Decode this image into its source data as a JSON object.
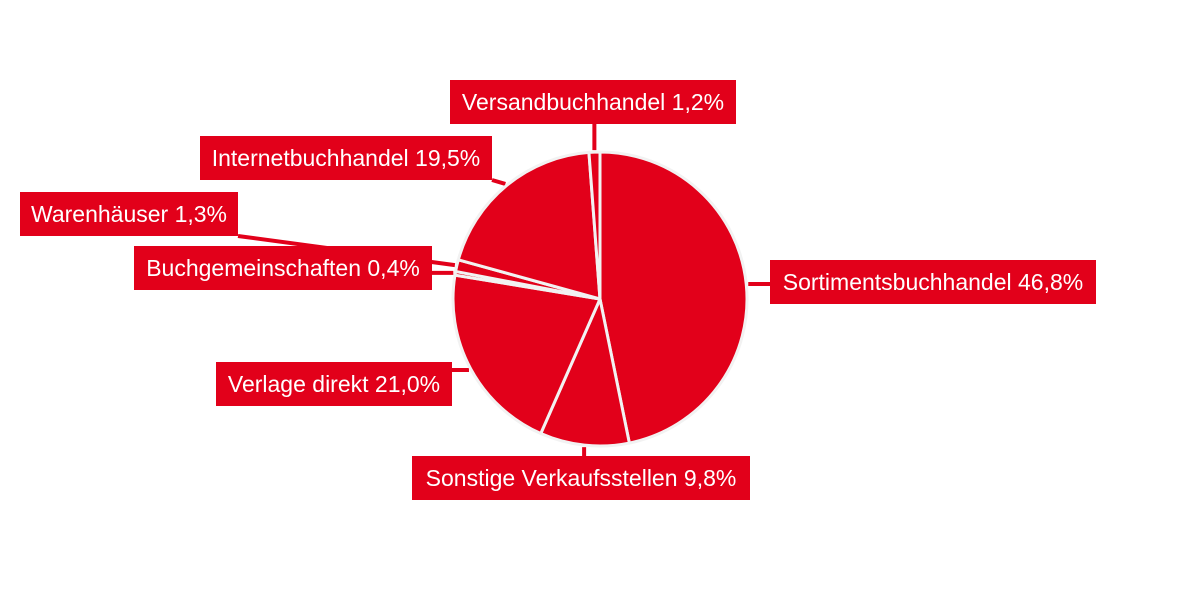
{
  "chart_data": {
    "type": "pie",
    "start_angle_deg": 0,
    "direction": "clockwise",
    "slices": [
      {
        "label": "Sortimentsbuchhandel 46,8%",
        "category": "Sortimentsbuchhandel",
        "value": 46.8
      },
      {
        "label": "Sonstige Verkaufsstellen 9,8%",
        "category": "Sonstige Verkaufsstellen",
        "value": 9.8
      },
      {
        "label": "Verlage direkt 21,0%",
        "category": "Verlage direkt",
        "value": 21.0
      },
      {
        "label": "Buchgemeinschaften 0,4%",
        "category": "Buchgemeinschaften",
        "value": 0.4
      },
      {
        "label": "Warenhäuser 1,3%",
        "category": "Warenhäuser",
        "value": 1.3
      },
      {
        "label": "Internetbuchhandel 19,5%",
        "category": "Internetbuchhandel",
        "value": 19.5
      },
      {
        "label": "Versandbuchhandel 1,2%",
        "category": "Versandbuchhandel",
        "value": 1.2
      }
    ],
    "colors": {
      "slice": "#e2001a",
      "label_background": "#e2001a",
      "label_text": "#ffffff",
      "slice_border": "#f2f2f2"
    }
  }
}
